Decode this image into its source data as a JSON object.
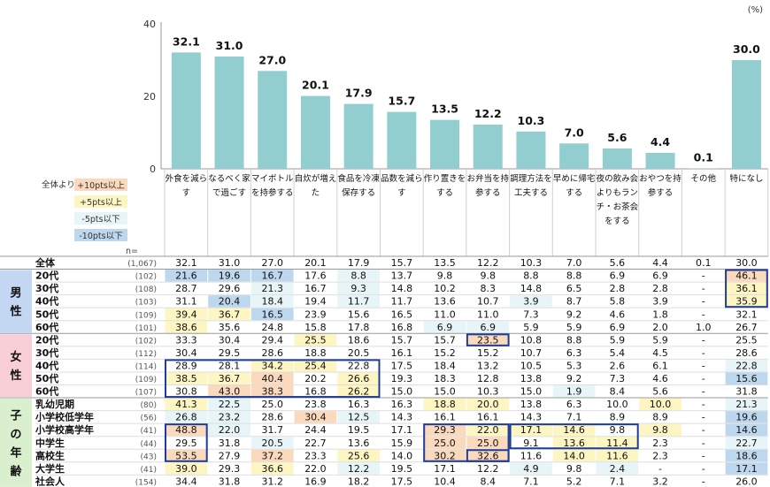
{
  "unit_label": "(%)",
  "legend": {
    "prefix": "全体より",
    "items": [
      {
        "label": "+10pts以上",
        "color": "#fbd9bd"
      },
      {
        "label": "+5pts以上",
        "color": "#fdf6c3"
      },
      {
        "label": "-5pts以下",
        "color": "#e7f5f8"
      },
      {
        "label": "-10pts以下",
        "color": "#bdd7ee"
      }
    ]
  },
  "n_label": "n=",
  "groups": [
    {
      "label": "男性",
      "color": "#c3d6f2"
    },
    {
      "label": "女性",
      "color": "#f8cfd6"
    },
    {
      "label": "子の年齢",
      "color": "#d9efce"
    }
  ],
  "chart_data": {
    "type": "bar",
    "ylim": [
      0,
      40
    ],
    "yticks": [
      0,
      20,
      40
    ],
    "bar_color": "#92cdcf",
    "categories": [
      "外食を減らす",
      "なるべく家で過ごす",
      "マイボトルを持参する",
      "自炊が増えた",
      "食品を冷凍保存する",
      "品数を減らす",
      "作り置きをする",
      "お弁当を持参する",
      "調理方法を工夫する",
      "早めに帰宅する",
      "夜の飲み会よりもランチ・お茶会をする",
      "おやつを持参する",
      "その他",
      "特になし"
    ],
    "values": [
      32.1,
      31.0,
      27.0,
      20.1,
      17.9,
      15.7,
      13.5,
      12.2,
      10.3,
      7.0,
      5.6,
      4.4,
      0.1,
      30.0
    ],
    "value_labels": [
      "32.1",
      "31.0",
      "27.0",
      "20.1",
      "17.9",
      "15.7",
      "13.5",
      "12.2",
      "10.3",
      "7.0",
      "5.6",
      "4.4",
      "0.1",
      "30.0"
    ]
  },
  "table": {
    "rows": [
      {
        "label": "全体",
        "n": "(1,067)",
        "g": -1,
        "cells": [
          "32.1",
          "31.0",
          "27.0",
          "20.1",
          "17.9",
          "15.7",
          "13.5",
          "12.2",
          "10.3",
          "7.0",
          "5.6",
          "4.4",
          "0.1",
          "30.0"
        ],
        "hl": [
          0,
          0,
          0,
          0,
          0,
          0,
          0,
          0,
          0,
          0,
          0,
          0,
          0,
          0
        ]
      },
      {
        "label": "20代",
        "n": "(102)",
        "g": 0,
        "cells": [
          "21.6",
          "19.6",
          "16.7",
          "17.6",
          "8.8",
          "13.7",
          "9.8",
          "9.8",
          "8.8",
          "8.8",
          "6.9",
          "6.9",
          "-",
          "46.1"
        ],
        "hl": [
          4,
          4,
          4,
          0,
          3,
          0,
          0,
          0,
          0,
          0,
          0,
          0,
          0,
          1
        ]
      },
      {
        "label": "30代",
        "n": "(108)",
        "g": 0,
        "cells": [
          "28.7",
          "29.6",
          "21.3",
          "16.7",
          "9.3",
          "14.8",
          "10.2",
          "8.3",
          "14.8",
          "6.5",
          "2.8",
          "2.8",
          "-",
          "36.1"
        ],
        "hl": [
          0,
          0,
          3,
          0,
          3,
          0,
          0,
          0,
          0,
          0,
          0,
          0,
          0,
          2
        ]
      },
      {
        "label": "40代",
        "n": "(103)",
        "g": 0,
        "cells": [
          "31.1",
          "20.4",
          "18.4",
          "19.4",
          "11.7",
          "11.7",
          "13.6",
          "10.7",
          "3.9",
          "8.7",
          "5.8",
          "3.9",
          "-",
          "35.9"
        ],
        "hl": [
          0,
          4,
          3,
          0,
          3,
          0,
          0,
          0,
          3,
          0,
          0,
          0,
          0,
          2
        ]
      },
      {
        "label": "50代",
        "n": "(109)",
        "g": 0,
        "cells": [
          "39.4",
          "36.7",
          "16.5",
          "23.9",
          "15.6",
          "16.5",
          "11.0",
          "11.0",
          "7.3",
          "9.2",
          "4.6",
          "1.8",
          "-",
          "32.1"
        ],
        "hl": [
          2,
          2,
          4,
          0,
          0,
          0,
          0,
          0,
          0,
          0,
          0,
          0,
          0,
          0
        ]
      },
      {
        "label": "60代",
        "n": "(101)",
        "g": 0,
        "cells": [
          "38.6",
          "35.6",
          "24.8",
          "15.8",
          "17.8",
          "16.8",
          "6.9",
          "6.9",
          "5.9",
          "5.9",
          "6.9",
          "2.0",
          "1.0",
          "26.7"
        ],
        "hl": [
          2,
          0,
          0,
          0,
          0,
          0,
          3,
          3,
          0,
          0,
          0,
          0,
          0,
          0
        ]
      },
      {
        "label": "20代",
        "n": "(102)",
        "g": 1,
        "cells": [
          "33.3",
          "30.4",
          "29.4",
          "25.5",
          "18.6",
          "15.7",
          "15.7",
          "23.5",
          "10.8",
          "8.8",
          "5.9",
          "5.9",
          "-",
          "25.5"
        ],
        "hl": [
          0,
          0,
          0,
          2,
          0,
          0,
          0,
          1,
          0,
          0,
          0,
          0,
          0,
          0
        ]
      },
      {
        "label": "30代",
        "n": "(112)",
        "g": 1,
        "cells": [
          "30.4",
          "29.5",
          "28.6",
          "18.8",
          "20.5",
          "16.1",
          "15.2",
          "15.2",
          "10.7",
          "6.3",
          "5.4",
          "4.5",
          "-",
          "28.6"
        ],
        "hl": [
          0,
          0,
          0,
          0,
          0,
          0,
          0,
          0,
          0,
          0,
          0,
          0,
          0,
          0
        ]
      },
      {
        "label": "40代",
        "n": "(114)",
        "g": 1,
        "cells": [
          "28.9",
          "28.1",
          "34.2",
          "25.4",
          "22.8",
          "17.5",
          "18.4",
          "13.2",
          "10.5",
          "5.3",
          "2.6",
          "6.1",
          "-",
          "22.8"
        ],
        "hl": [
          0,
          0,
          2,
          2,
          0,
          0,
          0,
          0,
          0,
          0,
          0,
          0,
          0,
          3
        ]
      },
      {
        "label": "50代",
        "n": "(109)",
        "g": 1,
        "cells": [
          "38.5",
          "36.7",
          "40.4",
          "20.2",
          "26.6",
          "19.3",
          "18.3",
          "12.8",
          "13.8",
          "9.2",
          "7.3",
          "4.6",
          "-",
          "15.6"
        ],
        "hl": [
          2,
          2,
          1,
          0,
          2,
          0,
          0,
          0,
          0,
          0,
          0,
          0,
          0,
          4
        ]
      },
      {
        "label": "60代",
        "n": "(107)",
        "g": 1,
        "cells": [
          "30.8",
          "43.0",
          "38.3",
          "16.8",
          "26.2",
          "15.0",
          "15.0",
          "10.3",
          "15.0",
          "1.9",
          "8.4",
          "5.6",
          "-",
          "31.8"
        ],
        "hl": [
          0,
          1,
          1,
          0,
          2,
          0,
          0,
          0,
          0,
          3,
          0,
          0,
          0,
          0
        ]
      },
      {
        "label": "乳幼児期",
        "n": "(80)",
        "g": 2,
        "cells": [
          "41.3",
          "22.5",
          "25.0",
          "23.8",
          "16.3",
          "16.3",
          "18.8",
          "20.0",
          "13.8",
          "6.3",
          "10.0",
          "10.0",
          "-",
          "21.3"
        ],
        "hl": [
          2,
          3,
          0,
          0,
          0,
          0,
          2,
          2,
          0,
          0,
          0,
          2,
          0,
          3
        ]
      },
      {
        "label": "小学校低学年",
        "n": "(56)",
        "g": 2,
        "cells": [
          "26.8",
          "23.2",
          "28.6",
          "30.4",
          "12.5",
          "14.3",
          "16.1",
          "16.1",
          "14.3",
          "7.1",
          "8.9",
          "8.9",
          "-",
          "19.6"
        ],
        "hl": [
          3,
          3,
          0,
          1,
          3,
          0,
          0,
          0,
          0,
          0,
          0,
          0,
          0,
          4
        ]
      },
      {
        "label": "小学校高学年",
        "n": "(41)",
        "g": 2,
        "cells": [
          "48.8",
          "22.0",
          "31.7",
          "24.4",
          "19.5",
          "17.1",
          "29.3",
          "22.0",
          "17.1",
          "14.6",
          "9.8",
          "9.8",
          "-",
          "14.6"
        ],
        "hl": [
          1,
          3,
          0,
          0,
          0,
          0,
          1,
          2,
          2,
          2,
          0,
          2,
          0,
          4
        ]
      },
      {
        "label": "中学生",
        "n": "(44)",
        "g": 2,
        "cells": [
          "29.5",
          "31.8",
          "20.5",
          "22.7",
          "13.6",
          "15.9",
          "25.0",
          "25.0",
          "9.1",
          "13.6",
          "11.4",
          "2.3",
          "-",
          "22.7"
        ],
        "hl": [
          0,
          0,
          3,
          0,
          0,
          0,
          1,
          1,
          0,
          2,
          2,
          0,
          0,
          3
        ]
      },
      {
        "label": "高校生",
        "n": "(43)",
        "g": 2,
        "cells": [
          "53.5",
          "27.9",
          "37.2",
          "23.3",
          "25.6",
          "14.0",
          "30.2",
          "32.6",
          "11.6",
          "14.0",
          "11.6",
          "2.3",
          "-",
          "18.6"
        ],
        "hl": [
          1,
          0,
          1,
          0,
          2,
          0,
          1,
          1,
          0,
          2,
          2,
          0,
          0,
          4
        ]
      },
      {
        "label": "大学生",
        "n": "(41)",
        "g": 2,
        "cells": [
          "39.0",
          "29.3",
          "36.6",
          "22.0",
          "12.2",
          "19.5",
          "17.1",
          "12.2",
          "4.9",
          "9.8",
          "2.4",
          "-",
          "-",
          "17.1"
        ],
        "hl": [
          2,
          0,
          2,
          0,
          3,
          0,
          0,
          0,
          3,
          0,
          3,
          0,
          0,
          4
        ]
      },
      {
        "label": "社会人",
        "n": "(154)",
        "g": 2,
        "cells": [
          "34.4",
          "31.8",
          "31.2",
          "16.9",
          "18.2",
          "17.5",
          "10.4",
          "8.4",
          "7.1",
          "5.2",
          "7.1",
          "3.2",
          "-",
          "26.0"
        ],
        "hl": [
          0,
          0,
          0,
          0,
          0,
          0,
          0,
          0,
          0,
          0,
          0,
          0,
          0,
          0
        ]
      }
    ]
  }
}
